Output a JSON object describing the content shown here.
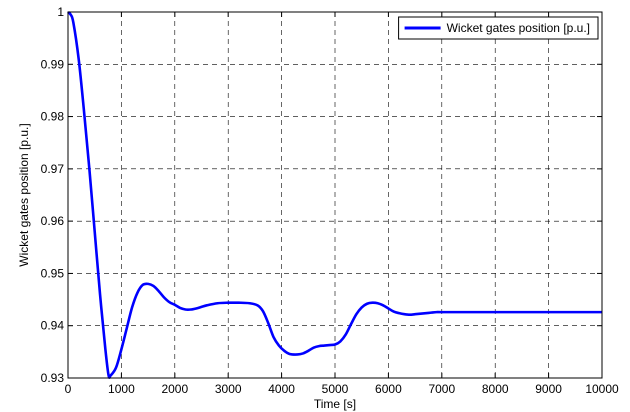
{
  "chart_data": {
    "type": "line",
    "title": "",
    "xlabel": "Time [s]",
    "ylabel": "Wicket gates position [p.u.]",
    "xlim": [
      0,
      10000
    ],
    "ylim": [
      0.93,
      1.0
    ],
    "xticks": [
      0,
      1000,
      2000,
      3000,
      4000,
      5000,
      6000,
      7000,
      8000,
      9000,
      10000
    ],
    "xtick_labels": [
      "0",
      "1000",
      "2000",
      "3000",
      "4000",
      "5000",
      "6000",
      "7000",
      "8000",
      "9000",
      "10000"
    ],
    "yticks": [
      0.93,
      0.94,
      0.95,
      0.96,
      0.97,
      0.98,
      0.99,
      1.0
    ],
    "ytick_labels": [
      "0.93",
      "0.94",
      "0.95",
      "0.96",
      "0.97",
      "0.98",
      "0.99",
      "1"
    ],
    "grid": true,
    "legend_position": "top-right",
    "series": [
      {
        "name": "Wicket gates position [p.u.]",
        "color": "#0000ff",
        "x": [
          0,
          50,
          100,
          200,
          300,
          400,
          500,
          600,
          700,
          760,
          800,
          900,
          1000,
          1100,
          1200,
          1300,
          1400,
          1500,
          1600,
          1700,
          1800,
          1900,
          2000,
          2100,
          2200,
          2300,
          2400,
          2500,
          2600,
          2800,
          3000,
          3200,
          3400,
          3550,
          3650,
          3750,
          3850,
          3950,
          4050,
          4150,
          4300,
          4400,
          4500,
          4600,
          4700,
          4800,
          4900,
          5000,
          5100,
          5200,
          5300,
          5400,
          5500,
          5600,
          5700,
          5800,
          5900,
          6000,
          6100,
          6200,
          6300,
          6400,
          6500,
          6600,
          6700,
          6800,
          6900,
          7000,
          7500,
          8000,
          8500,
          9000,
          9500,
          10000
        ],
        "y": [
          1.0,
          0.9995,
          0.998,
          0.991,
          0.981,
          0.97,
          0.958,
          0.946,
          0.9355,
          0.9305,
          0.9305,
          0.932,
          0.9355,
          0.9395,
          0.9435,
          0.9463,
          0.9478,
          0.948,
          0.9476,
          0.9466,
          0.9454,
          0.9445,
          0.944,
          0.9434,
          0.9431,
          0.9431,
          0.9433,
          0.9436,
          0.9439,
          0.9443,
          0.9444,
          0.9444,
          0.9443,
          0.9439,
          0.9428,
          0.9405,
          0.9378,
          0.9362,
          0.9352,
          0.9346,
          0.9345,
          0.9347,
          0.9352,
          0.9358,
          0.9361,
          0.9362,
          0.9363,
          0.9364,
          0.937,
          0.9383,
          0.9403,
          0.9422,
          0.9435,
          0.9442,
          0.9444,
          0.9443,
          0.9439,
          0.9433,
          0.9427,
          0.9424,
          0.9422,
          0.9421,
          0.9422,
          0.9423,
          0.9424,
          0.9425,
          0.9426,
          0.9426,
          0.9426,
          0.9426,
          0.9426,
          0.9426,
          0.9426,
          0.9426
        ]
      }
    ]
  }
}
